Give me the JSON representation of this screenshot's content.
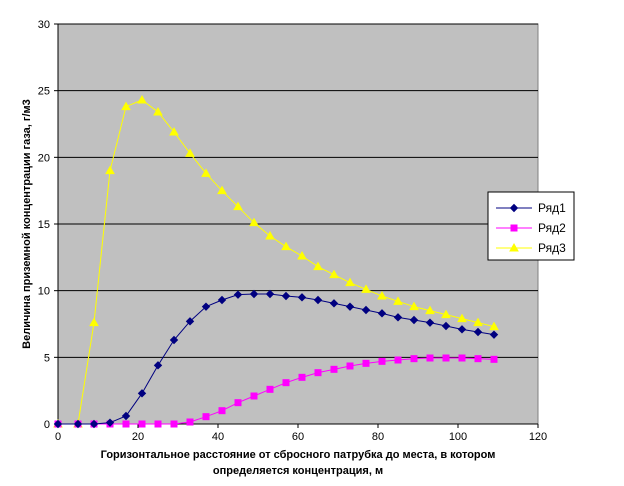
{
  "chart_data": {
    "type": "line",
    "xlabel": [
      "Горизонтальное расстояние от сбросного патрубка до места, в котором",
      "определяется концентрация, м"
    ],
    "ylabel": "Величина приземной концентрации газа, г/м3",
    "xlim": [
      0,
      120
    ],
    "ylim": [
      0,
      30
    ],
    "xticks": [
      0,
      20,
      40,
      60,
      80,
      100,
      120
    ],
    "yticks": [
      0,
      5,
      10,
      15,
      20,
      25,
      30
    ],
    "grid": "horizontal",
    "plot_background": "#c0c0c0",
    "legend_position": "right",
    "x": [
      0,
      5,
      9,
      13,
      17,
      21,
      25,
      29,
      33,
      37,
      41,
      45,
      49,
      53,
      57,
      61,
      65,
      69,
      73,
      77,
      81,
      85,
      89,
      93,
      97,
      101,
      105,
      109
    ],
    "series": [
      {
        "name": "Ряд1",
        "color": "#000080",
        "marker": "diamond",
        "values": [
          0,
          0,
          0,
          0.1,
          0.6,
          2.3,
          4.4,
          6.3,
          7.7,
          8.8,
          9.3,
          9.7,
          9.75,
          9.75,
          9.6,
          9.5,
          9.3,
          9.05,
          8.8,
          8.55,
          8.3,
          8.0,
          7.8,
          7.6,
          7.35,
          7.1,
          6.9,
          6.7
        ]
      },
      {
        "name": "Ряд2",
        "color": "#ff00ff",
        "marker": "square",
        "values": [
          0,
          0,
          0,
          0,
          0,
          0,
          0,
          0,
          0.15,
          0.55,
          1.0,
          1.6,
          2.1,
          2.6,
          3.1,
          3.5,
          3.85,
          4.1,
          4.35,
          4.55,
          4.7,
          4.8,
          4.9,
          4.95,
          4.95,
          4.95,
          4.9,
          4.85
        ]
      },
      {
        "name": "Ряд3",
        "color": "#ffff00",
        "marker": "triangle",
        "values": [
          0,
          0,
          7.6,
          19.0,
          23.8,
          24.3,
          23.4,
          21.9,
          20.3,
          18.8,
          17.5,
          16.3,
          15.1,
          14.1,
          13.3,
          12.6,
          11.8,
          11.2,
          10.6,
          10.1,
          9.6,
          9.2,
          8.8,
          8.5,
          8.2,
          7.9,
          7.6,
          7.3
        ]
      }
    ]
  }
}
